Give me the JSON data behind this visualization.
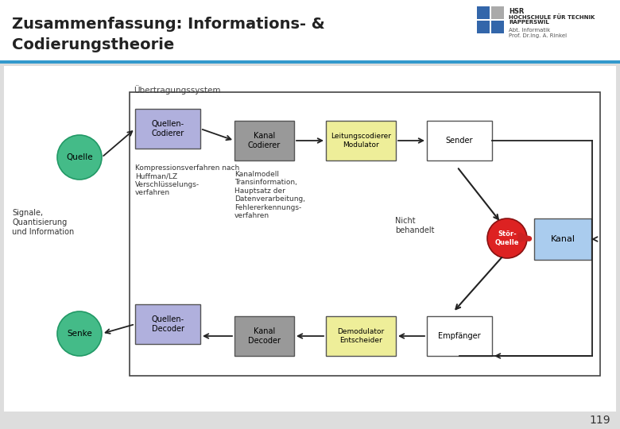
{
  "title_line1": "Zusammenfassung: Informations- &",
  "title_line2": "Codierungstheorie",
  "title_color": "#222222",
  "header_bar_color": "#3399cc",
  "slide_bg": "#f0f0f0",
  "content_bg": "#ffffff",
  "footer_number": "119",
  "hsr_text1": "HSR",
  "hsr_text2": "HOCHSCHULE FÜR TECHNIK",
  "hsr_text3": "RAPPERSWIL",
  "hsr_text4": "Abt. Informatik",
  "hsr_text5": "Prof. Dr.Ing. A. Rinkel",
  "ubertragung_label": "Übertragungssystem",
  "quellen_codierer_color": "#b0b0dd",
  "kanal_codierer_color": "#999999",
  "leitungs_color": "#eeee99",
  "sender_color": "#ffffff",
  "quellen_decoder_color": "#b0b0dd",
  "kanal_decoder_color": "#999999",
  "demodulator_color": "#eeee99",
  "empfaenger_color": "#ffffff",
  "kanal_color": "#aaccee",
  "stoerquelle_color": "#dd2222",
  "quelle_color": "#44bb88",
  "senke_color": "#44bb88",
  "arrow_color": "#222222",
  "red_arrow_color": "#cc2222",
  "diagram_border": "#444444",
  "box_border": "#555555"
}
